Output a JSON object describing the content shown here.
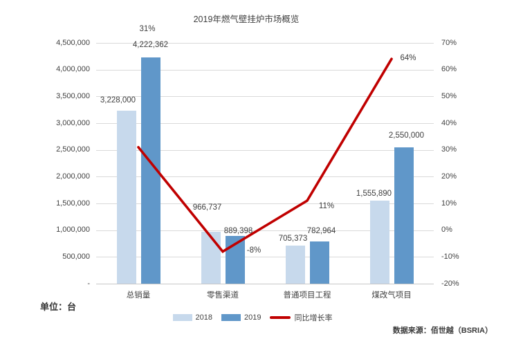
{
  "title": "2019年燃气壁挂炉市场概览",
  "unit_note": "单位：台",
  "source_note": "数据来源：佰世越（BSRIA）",
  "colors": {
    "bar_2018": "#c7d9ec",
    "bar_2019": "#6097c9",
    "growth_line": "#c00000",
    "grid": "#d9d9d9",
    "text": "#404040"
  },
  "legend": [
    {
      "label": "2018",
      "swatch": "rect-2018"
    },
    {
      "label": "2019",
      "swatch": "rect-2019"
    },
    {
      "label": "同比增长率",
      "swatch": "line-growth"
    }
  ],
  "chart_data": {
    "type": "bar",
    "subtype": "grouped-bars-with-line",
    "title": "2019年燃气壁挂炉市场概览",
    "categories": [
      "总销量",
      "零售渠道",
      "普通项目工程",
      "煤改气项目"
    ],
    "series": [
      {
        "name": "2018",
        "type": "bar",
        "axis": "left",
        "values": [
          3228000,
          966737,
          705373,
          1555890
        ]
      },
      {
        "name": "2019",
        "type": "bar",
        "axis": "left",
        "values": [
          4222362,
          889398,
          782964,
          2550000
        ]
      },
      {
        "name": "同比增长率",
        "type": "line",
        "axis": "right",
        "values": [
          31,
          -8,
          11,
          64
        ]
      }
    ],
    "data_labels": {
      "2018": [
        "3,228,000",
        "966,737",
        "705,373",
        "1,555,890"
      ],
      "2019": [
        "4,222,362",
        "889,398",
        "782,964",
        "2,550,000"
      ],
      "growth": [
        "31%",
        "-8%",
        "11%",
        "64%"
      ]
    },
    "axes": {
      "left": {
        "min": 0,
        "max": 4500000,
        "step": 500000,
        "zero_label": "-"
      },
      "right": {
        "min": -20,
        "max": 70,
        "step": 10,
        "suffix": "%"
      }
    },
    "layout_hints": {
      "grid": "horizontal",
      "legend_position": "bottom-center",
      "label_offsets": {
        "2018": [
          [
            -12,
            -5
          ],
          [
            -5,
            -25
          ],
          [
            -3,
            0
          ],
          [
            -8,
            0
          ]
        ],
        "2019": [
          [
            0,
            -8
          ],
          [
            5,
            3
          ],
          [
            3,
            -5
          ],
          [
            4,
            -7
          ]
        ],
        "growth": [
          [
            13,
            -171
          ],
          [
            45,
            -2
          ],
          [
            28,
            8
          ],
          [
            24,
            -1
          ]
        ]
      }
    }
  }
}
